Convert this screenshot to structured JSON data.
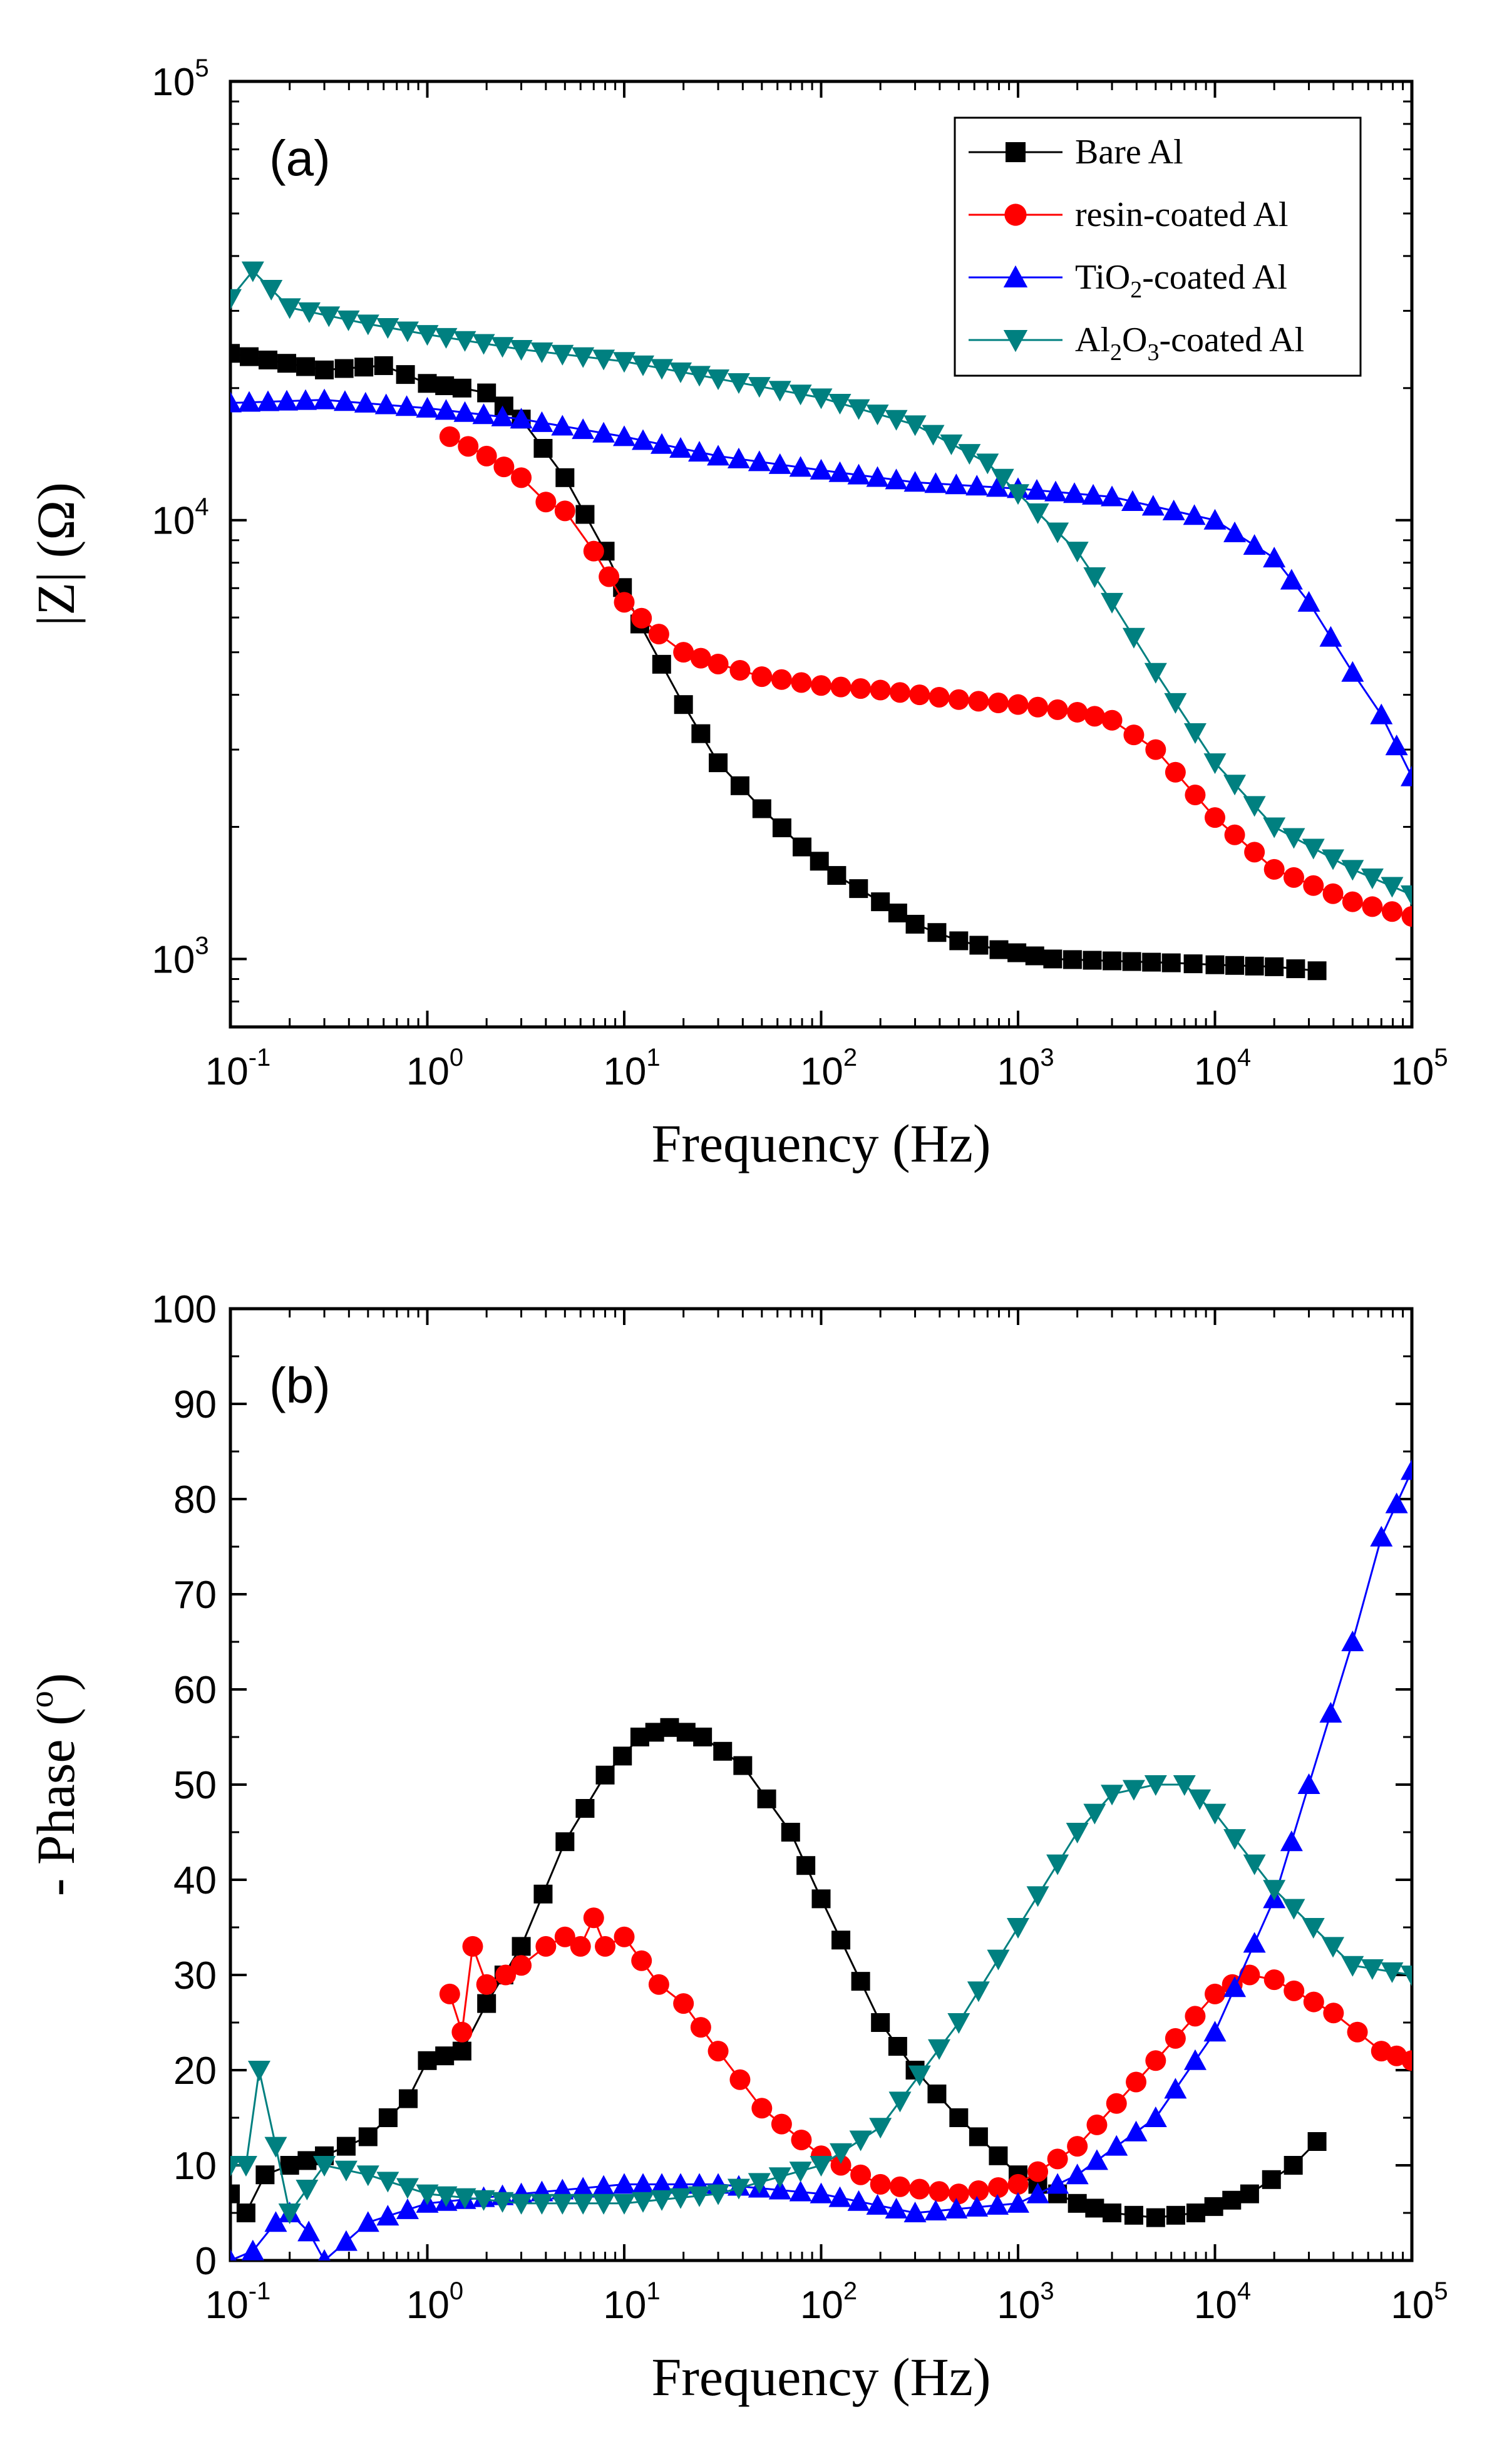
{
  "chart_data": [
    {
      "type": "line",
      "panel_label": "(a)",
      "xlabel": "Frequency (Hz)",
      "ylabel": "|Z| (Ω)",
      "xscale": "log",
      "yscale": "log",
      "xlim": [
        0.1,
        100000
      ],
      "ylim": [
        700,
        100000
      ],
      "x_ticks": [
        {
          "base": "10",
          "exp": "-1"
        },
        {
          "base": "10",
          "exp": "0"
        },
        {
          "base": "10",
          "exp": "1"
        },
        {
          "base": "10",
          "exp": "2"
        },
        {
          "base": "10",
          "exp": "3"
        },
        {
          "base": "10",
          "exp": "4"
        },
        {
          "base": "10",
          "exp": "5"
        }
      ],
      "y_ticks": [
        {
          "value": 1000,
          "base": "10",
          "exp": "3"
        },
        {
          "value": 10000,
          "base": "10",
          "exp": "4"
        },
        {
          "value": 100000,
          "base": "10",
          "exp": "5"
        }
      ],
      "grid": false,
      "legend_position": "top-right",
      "series": [
        {
          "name": "Bare Al",
          "color": "#000000",
          "marker": "square",
          "x": [
            0.1,
            0.3,
            0.6,
            1,
            1.5,
            2,
            3,
            5,
            8,
            12,
            20,
            30,
            50,
            80,
            120,
            200,
            300,
            500,
            800,
            1500,
            3000,
            6000,
            10000,
            20000,
            33000
          ],
          "y": [
            24000,
            22000,
            22500,
            20500,
            20000,
            19500,
            17000,
            12500,
            8500,
            5800,
            3800,
            2800,
            2200,
            1800,
            1550,
            1350,
            1200,
            1100,
            1050,
            1000,
            990,
            980,
            970,
            960,
            940
          ]
        },
        {
          "name": "resin-coated Al",
          "color": "#ff0000",
          "marker": "circle",
          "x": [
            1.3,
            2,
            3,
            4,
            5,
            7,
            10,
            15,
            20,
            30,
            50,
            100,
            200,
            500,
            1000,
            2000,
            3000,
            5000,
            10000,
            20000,
            50000,
            100000
          ],
          "y": [
            15500,
            14000,
            12500,
            11000,
            10500,
            8500,
            6500,
            5500,
            5000,
            4700,
            4400,
            4200,
            4100,
            3900,
            3800,
            3650,
            3500,
            3000,
            2100,
            1600,
            1350,
            1250
          ]
        },
        {
          "name": "TiO₂-coated Al",
          "name_parts": [
            "TiO",
            "2",
            "-coated Al"
          ],
          "color": "#0000ff",
          "marker": "triangle-up",
          "x": [
            0.1,
            0.3,
            1,
            3,
            10,
            30,
            100,
            300,
            1000,
            3000,
            10000,
            20000,
            30000,
            50000,
            70000,
            100000
          ],
          "y": [
            18500,
            18800,
            18000,
            17000,
            15500,
            14000,
            13000,
            12200,
            11800,
            11300,
            10000,
            8200,
            6500,
            4500,
            3600,
            2600
          ]
        },
        {
          "name": "Al₂O₃-coated Al",
          "name_parts": [
            "Al",
            "2",
            "O",
            "3",
            "-coated Al"
          ],
          "color": "#008080",
          "marker": "triangle-down",
          "x": [
            0.1,
            0.13,
            0.2,
            0.5,
            1,
            3,
            10,
            30,
            100,
            300,
            700,
            1000,
            2000,
            3000,
            5000,
            10000,
            20000,
            50000,
            100000
          ],
          "y": [
            32000,
            37000,
            30500,
            28000,
            26500,
            24500,
            23000,
            21000,
            19000,
            16500,
            13500,
            11500,
            8500,
            6500,
            4500,
            2800,
            2000,
            1600,
            1400
          ]
        }
      ]
    },
    {
      "type": "line",
      "panel_label": "(b)",
      "xlabel": "Frequency (Hz)",
      "ylabel": "- Phase (°)",
      "ylabel_parts": [
        "- Phase (",
        "o",
        ")"
      ],
      "xscale": "log",
      "yscale": "linear",
      "xlim": [
        0.1,
        100000
      ],
      "ylim": [
        0,
        100
      ],
      "x_ticks": [
        {
          "base": "10",
          "exp": "-1"
        },
        {
          "base": "10",
          "exp": "0"
        },
        {
          "base": "10",
          "exp": "1"
        },
        {
          "base": "10",
          "exp": "2"
        },
        {
          "base": "10",
          "exp": "3"
        },
        {
          "base": "10",
          "exp": "4"
        },
        {
          "base": "10",
          "exp": "5"
        }
      ],
      "y_ticks": [
        "0",
        "10",
        "20",
        "30",
        "40",
        "50",
        "60",
        "70",
        "80",
        "90",
        "100"
      ],
      "grid": false,
      "series": [
        {
          "name": "Bare Al",
          "color": "#000000",
          "marker": "square",
          "x": [
            0.1,
            0.12,
            0.15,
            0.2,
            0.3,
            0.5,
            0.8,
            1,
            1.5,
            2,
            3,
            5,
            8,
            12,
            17,
            25,
            40,
            70,
            100,
            200,
            300,
            500,
            1000,
            2000,
            3000,
            5000,
            8000,
            15000,
            25000,
            33000
          ],
          "y": [
            7,
            5,
            9,
            10,
            11,
            13,
            17,
            21,
            22,
            27,
            33,
            44,
            51,
            55,
            56,
            55,
            52,
            45,
            38,
            25,
            20,
            15,
            9,
            6,
            5,
            4.5,
            5,
            7,
            10,
            12.5
          ]
        },
        {
          "name": "resin-coated Al",
          "color": "#ff0000",
          "marker": "circle",
          "x": [
            1.3,
            1.5,
            1.7,
            2,
            2.5,
            3,
            4,
            5,
            6,
            7,
            8,
            10,
            15,
            20,
            30,
            50,
            100,
            200,
            500,
            1000,
            2000,
            5000,
            10000,
            15000,
            20000,
            40000,
            70000,
            100000
          ],
          "y": [
            28,
            24,
            33,
            29,
            30,
            31,
            33,
            34,
            33,
            36,
            33,
            34,
            29,
            27,
            22,
            16,
            11,
            8,
            7,
            8,
            12,
            21,
            28,
            30,
            29.5,
            26,
            22,
            21
          ]
        },
        {
          "name": "TiO₂-coated Al",
          "color": "#0000ff",
          "marker": "triangle-up",
          "x": [
            0.1,
            0.13,
            0.17,
            0.2,
            0.25,
            0.3,
            0.5,
            1,
            3,
            10,
            30,
            100,
            300,
            1000,
            2000,
            5000,
            10000,
            20000,
            30000,
            50000,
            70000,
            100000
          ],
          "y": [
            0,
            1,
            4,
            5,
            3,
            0,
            4,
            6,
            7,
            8,
            8,
            7,
            5,
            6,
            9,
            15,
            24,
            38,
            50,
            65,
            76,
            83
          ]
        },
        {
          "name": "Al₂O₃-coated Al",
          "color": "#008080",
          "marker": "triangle-down",
          "x": [
            0.1,
            0.12,
            0.14,
            0.17,
            0.2,
            0.3,
            0.5,
            1,
            3,
            10,
            30,
            100,
            200,
            500,
            1000,
            2000,
            3000,
            5000,
            7000,
            10000,
            20000,
            50000,
            100000
          ],
          "y": [
            10,
            10,
            20,
            12,
            5,
            10,
            9,
            7,
            6,
            6,
            7,
            10,
            14,
            25,
            35,
            45,
            49,
            50,
            50,
            47,
            39,
            31,
            30
          ]
        }
      ]
    }
  ]
}
